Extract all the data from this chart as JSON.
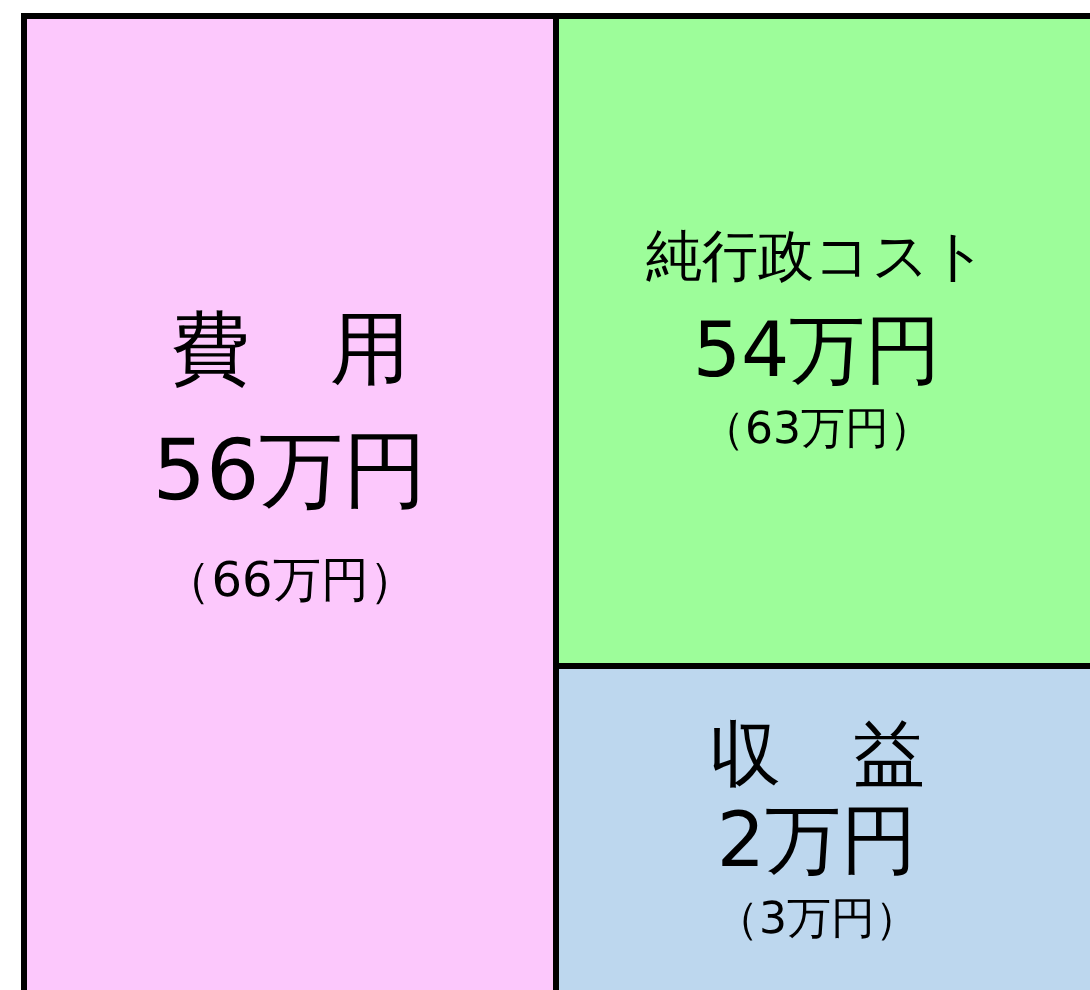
{
  "chart_data": {
    "type": "other",
    "categories": [
      "費　用",
      "純行政コスト",
      "収　益"
    ],
    "series": [
      {
        "colors": [
          "#fcc8fc",
          "#9dfd9a",
          "#bdd7ee"
        ],
        "values": [
          56,
          54,
          2
        ],
        "value_labels": [
          "56万円",
          "54万円",
          "2万円"
        ]
      },
      {
        "colors": [
          "#fcc8fc",
          "#9dfd9a",
          "#bdd7ee"
        ],
        "values": [
          66,
          63,
          3
        ],
        "value_labels": [
          "（66万円）",
          "（63万円）",
          "（3万円）"
        ]
      }
    ]
  }
}
